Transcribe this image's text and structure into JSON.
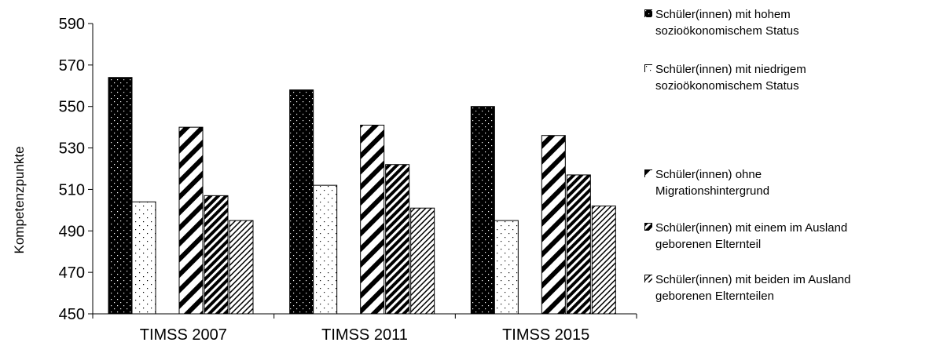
{
  "chart_data": {
    "type": "bar",
    "title": "",
    "xlabel": "",
    "ylabel": "Kompetenzpunkte",
    "ylim": [
      450,
      590
    ],
    "yticks": [
      450,
      470,
      490,
      510,
      530,
      550,
      570,
      590
    ],
    "grid": false,
    "legend_position": "right",
    "categories": [
      "TIMSS 2007",
      "TIMSS 2011",
      "TIMSS 2015"
    ],
    "series": [
      {
        "name": "Schüler(innen) mit hohem\nsozioökonomischem Status",
        "pattern": "dense-dots-dark",
        "values": [
          564,
          558,
          550
        ]
      },
      {
        "name": "Schüler(innen) mit niedrigem\nsozioökonomischem Status",
        "pattern": "sparse-dots-light",
        "values": [
          504,
          512,
          495
        ]
      },
      {
        "name": "Schüler(innen) ohne\nMigrationshintergrund",
        "pattern": "wide-diagonal-stripes",
        "values": [
          540,
          541,
          536
        ]
      },
      {
        "name": "Schüler(innen) mit einem im Ausland\ngeborenen Elternteil",
        "pattern": "dense-diagonal-stripes",
        "values": [
          507,
          522,
          517
        ]
      },
      {
        "name": "Schüler(innen) mit beiden im Ausland\ngeborenen Elternteilen",
        "pattern": "fine-diagonal-stripes",
        "values": [
          495,
          501,
          502
        ]
      }
    ]
  }
}
